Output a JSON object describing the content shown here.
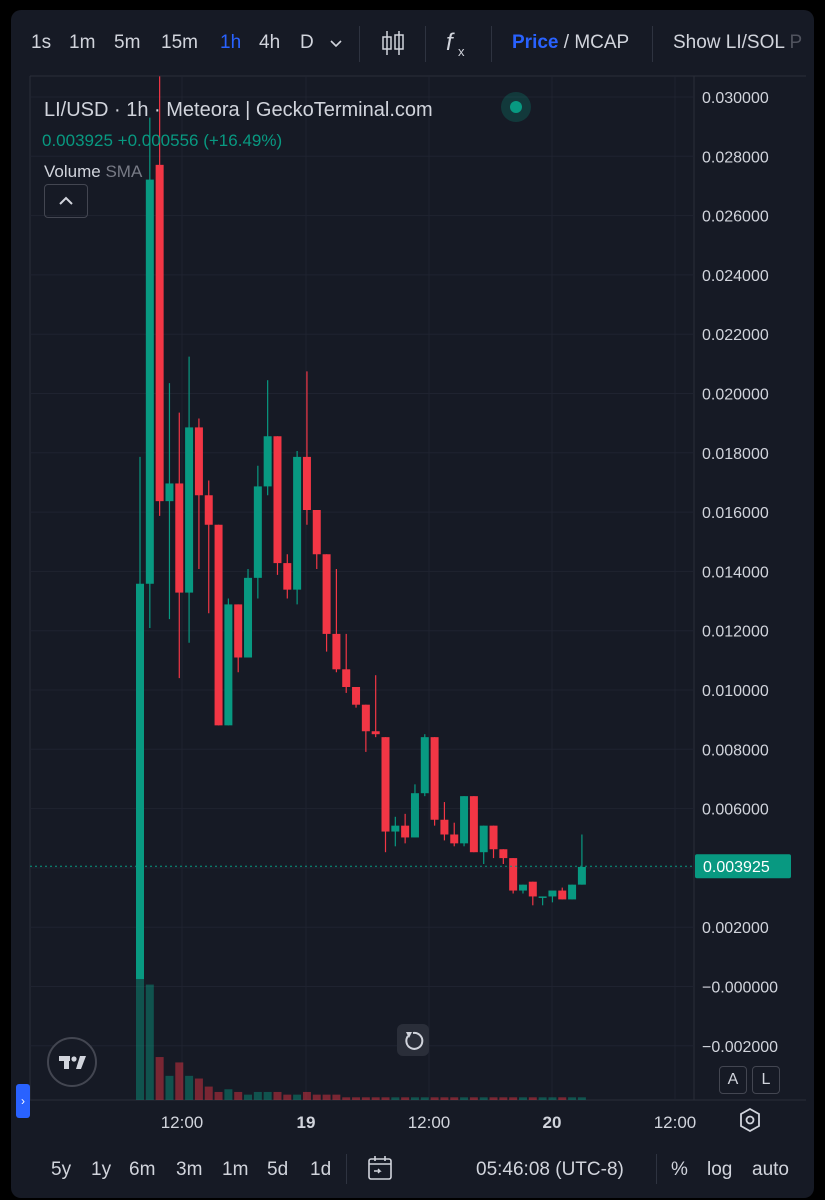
{
  "toolbar": {
    "timeframes": [
      "1s",
      "1m",
      "5m",
      "15m",
      "1h",
      "4h",
      "D"
    ],
    "active_timeframe": "1h",
    "price_label": "Price",
    "mcap_label": "MCAP",
    "divider": "/",
    "show_label": "Show LI/SOL",
    "show_label_tail": "P"
  },
  "legend": {
    "title": "LI/USD · 1h · Meteora | GeckoTerminal.com",
    "last_price": "0.003925",
    "change": "+0.000556",
    "change_pct": "(+16.49%)",
    "volume_label": "Volume",
    "volume_indicator": "SMA"
  },
  "bottombar": {
    "ranges": [
      "5y",
      "1y",
      "6m",
      "3m",
      "1m",
      "5d",
      "1d"
    ],
    "clock": "05:46:08 (UTC-8)",
    "percent_label": "%",
    "log_label": "log",
    "auto_label": "auto"
  },
  "scale_buttons": {
    "a": "A",
    "l": "L"
  },
  "colors": {
    "up": "#089981",
    "down": "#f23645",
    "accent": "#2962ff",
    "background": "#161a25"
  },
  "icons": [
    "candlestick-icon",
    "indicators-icon",
    "chevron-down-icon",
    "chevron-up-icon",
    "tradingview-logo-icon",
    "reset-icon",
    "settings-icon",
    "calendar-range-icon",
    "expand-left-icon"
  ],
  "chart_data": {
    "type": "candlestick",
    "title": "LI/USD · 1h · Meteora | GeckoTerminal.com",
    "x_tick_labels": [
      "12:00",
      "19",
      "12:00",
      "20",
      "12:00"
    ],
    "y_tick_labels": [
      "0.030000",
      "0.028000",
      "0.026000",
      "0.024000",
      "0.022000",
      "0.020000",
      "0.018000",
      "0.016000",
      "0.014000",
      "0.012000",
      "0.010000",
      "0.008000",
      "0.006000",
      "0.004000",
      "0.002000",
      "−0.000000",
      "−0.002000"
    ],
    "ylim": [
      -0.0027,
      0.0307
    ],
    "last_price_label": "0.003925",
    "last_price": 0.003925,
    "grid": true,
    "candles": [
      {
        "o": 0.0001,
        "h": 0.0178,
        "l": 0.0001,
        "c": 0.0135
      },
      {
        "o": 0.0135,
        "h": 0.0293,
        "l": 0.012,
        "c": 0.0272
      },
      {
        "o": 0.0277,
        "h": 0.0307,
        "l": 0.0158,
        "c": 0.0163
      },
      {
        "o": 0.0163,
        "h": 0.0203,
        "l": 0.0123,
        "c": 0.0169
      },
      {
        "o": 0.0169,
        "h": 0.0193,
        "l": 0.0103,
        "c": 0.0132
      },
      {
        "o": 0.0132,
        "h": 0.0212,
        "l": 0.0115,
        "c": 0.0188
      },
      {
        "o": 0.0188,
        "h": 0.0191,
        "l": 0.014,
        "c": 0.0165
      },
      {
        "o": 0.0165,
        "h": 0.017,
        "l": 0.0125,
        "c": 0.0155
      },
      {
        "o": 0.0155,
        "h": 0.0155,
        "l": 0.0087,
        "c": 0.0087
      },
      {
        "o": 0.0087,
        "h": 0.013,
        "l": 0.0087,
        "c": 0.0128
      },
      {
        "o": 0.0128,
        "h": 0.0128,
        "l": 0.0105,
        "c": 0.011
      },
      {
        "o": 0.011,
        "h": 0.014,
        "l": 0.011,
        "c": 0.0137
      },
      {
        "o": 0.0137,
        "h": 0.0175,
        "l": 0.013,
        "c": 0.0168
      },
      {
        "o": 0.0168,
        "h": 0.0204,
        "l": 0.0165,
        "c": 0.0185
      },
      {
        "o": 0.0185,
        "h": 0.0185,
        "l": 0.0138,
        "c": 0.0142
      },
      {
        "o": 0.0142,
        "h": 0.0145,
        "l": 0.013,
        "c": 0.0133
      },
      {
        "o": 0.0133,
        "h": 0.018,
        "l": 0.0128,
        "c": 0.0178
      },
      {
        "o": 0.0178,
        "h": 0.0207,
        "l": 0.0155,
        "c": 0.016
      },
      {
        "o": 0.016,
        "h": 0.016,
        "l": 0.014,
        "c": 0.0145
      },
      {
        "o": 0.0145,
        "h": 0.0145,
        "l": 0.0112,
        "c": 0.0118
      },
      {
        "o": 0.0118,
        "h": 0.014,
        "l": 0.0105,
        "c": 0.0106
      },
      {
        "o": 0.0106,
        "h": 0.0118,
        "l": 0.0098,
        "c": 0.01
      },
      {
        "o": 0.01,
        "h": 0.01,
        "l": 0.0093,
        "c": 0.0094
      },
      {
        "o": 0.0094,
        "h": 0.0094,
        "l": 0.0078,
        "c": 0.0085
      },
      {
        "o": 0.0085,
        "h": 0.0104,
        "l": 0.0083,
        "c": 0.0084
      },
      {
        "o": 0.0083,
        "h": 0.0083,
        "l": 0.0044,
        "c": 0.0051
      },
      {
        "o": 0.0051,
        "h": 0.0056,
        "l": 0.0046,
        "c": 0.0053
      },
      {
        "o": 0.0053,
        "h": 0.0057,
        "l": 0.0047,
        "c": 0.0049
      },
      {
        "o": 0.0049,
        "h": 0.0067,
        "l": 0.0049,
        "c": 0.0064
      },
      {
        "o": 0.0064,
        "h": 0.0084,
        "l": 0.0063,
        "c": 0.0083
      },
      {
        "o": 0.0083,
        "h": 0.0083,
        "l": 0.0053,
        "c": 0.0055
      },
      {
        "o": 0.0055,
        "h": 0.0061,
        "l": 0.0048,
        "c": 0.005
      },
      {
        "o": 0.005,
        "h": 0.0054,
        "l": 0.0046,
        "c": 0.0047
      },
      {
        "o": 0.0047,
        "h": 0.0063,
        "l": 0.0046,
        "c": 0.0063
      },
      {
        "o": 0.0063,
        "h": 0.0063,
        "l": 0.0044,
        "c": 0.0044
      },
      {
        "o": 0.0044,
        "h": 0.0053,
        "l": 0.004,
        "c": 0.0053
      },
      {
        "o": 0.0053,
        "h": 0.0053,
        "l": 0.0042,
        "c": 0.0045
      },
      {
        "o": 0.0045,
        "h": 0.0045,
        "l": 0.004,
        "c": 0.0042
      },
      {
        "o": 0.0042,
        "h": 0.0042,
        "l": 0.003,
        "c": 0.0031
      },
      {
        "o": 0.0031,
        "h": 0.0033,
        "l": 0.003,
        "c": 0.0033
      },
      {
        "o": 0.0034,
        "h": 0.0034,
        "l": 0.0026,
        "c": 0.0029
      },
      {
        "o": 0.0029,
        "h": 0.0029,
        "l": 0.0026,
        "c": 0.0029
      },
      {
        "o": 0.0029,
        "h": 0.003,
        "l": 0.0027,
        "c": 0.0031
      },
      {
        "o": 0.0031,
        "h": 0.0032,
        "l": 0.0028,
        "c": 0.0028
      },
      {
        "o": 0.0028,
        "h": 0.0033,
        "l": 0.0028,
        "c": 0.0033
      },
      {
        "o": 0.0033,
        "h": 0.005,
        "l": 0.0033,
        "c": 0.0039
      }
    ],
    "volume": [
      95,
      43,
      16,
      9,
      14,
      9,
      8,
      5,
      3,
      4,
      3,
      2,
      3,
      3,
      3,
      2,
      2,
      3,
      2,
      2,
      2,
      1,
      1,
      1,
      1,
      1,
      1,
      1,
      1,
      1,
      1,
      1,
      1,
      1,
      1,
      1,
      1,
      1,
      1,
      1,
      1,
      1,
      1,
      1,
      1,
      1
    ]
  }
}
